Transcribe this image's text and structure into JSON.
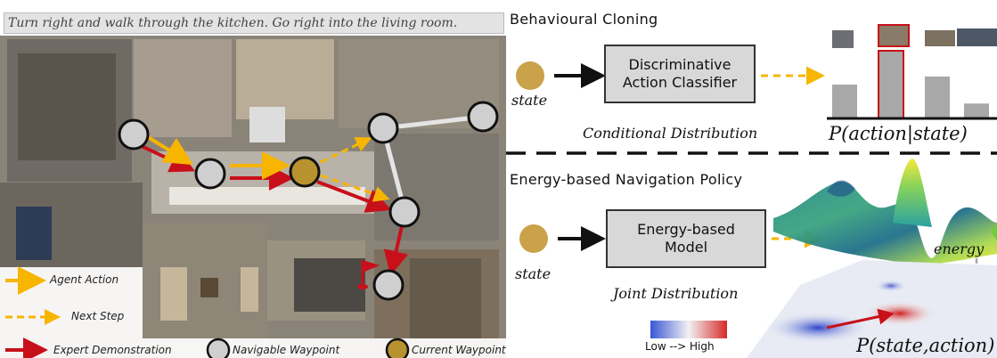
{
  "instruction": "Turn right and walk through the kitchen. Go right into the living room.",
  "legend": {
    "agent_action": "Agent Action",
    "next_step": "Next Step",
    "expert_demo": "Expert Demonstration",
    "navigable_waypoint": "Navigable Waypoint",
    "current_waypoint": "Current Waypoint"
  },
  "bc": {
    "title": "Behavioural Cloning",
    "box": [
      "Discriminative",
      "Action Classifier"
    ],
    "state": "state",
    "dist_label": "Conditional Distribution",
    "axis_label": "P(action|state)",
    "bars": [
      0.5,
      1.0,
      0.62,
      0.22
    ],
    "highlighted_bar": 1
  },
  "ebm": {
    "title": "Energy-based Navigation Policy",
    "box": [
      "Energy-based",
      "Model"
    ],
    "state": "state",
    "dist_label": "Joint Distribution",
    "energy_label": "energy",
    "colorbar_label": "Low --> High",
    "prob_label": "P(state,action)"
  },
  "colors": {
    "waypoint": "#cfcfcf",
    "current": "#b8922e",
    "agent": "#f7b500",
    "expert": "#c8101a"
  }
}
